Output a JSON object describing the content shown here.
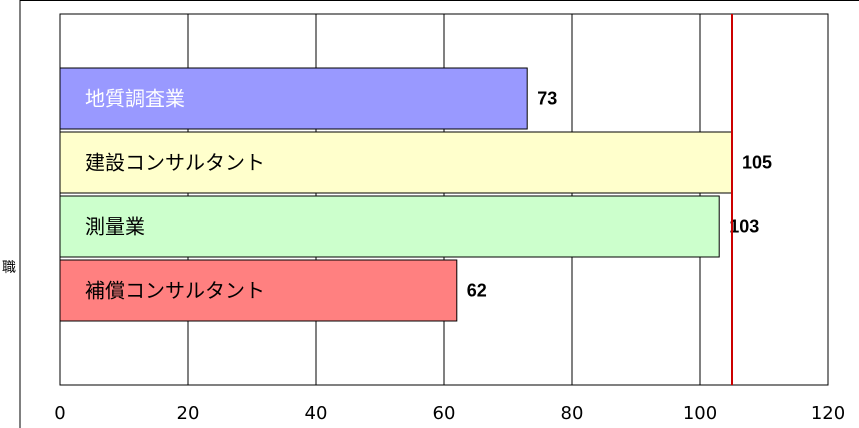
{
  "chart_data": {
    "type": "bar",
    "orientation": "horizontal",
    "categories": [
      "地質調査業",
      "建設コンサルタント",
      "測量業",
      "補償コンサルタント"
    ],
    "values": [
      73,
      105,
      103,
      62
    ],
    "colors": [
      "#9999ff",
      "#ffffcc",
      "#ccffcc",
      "#ff8080"
    ],
    "label_colors": [
      "#ffffff",
      "#000000",
      "#000000",
      "#000000"
    ],
    "xlim": [
      0,
      120
    ],
    "xticks": [
      0,
      20,
      40,
      60,
      80,
      100,
      120
    ],
    "reference_line": {
      "value": 105,
      "color": "#cc0000"
    },
    "grid": true,
    "side_text": "職"
  }
}
